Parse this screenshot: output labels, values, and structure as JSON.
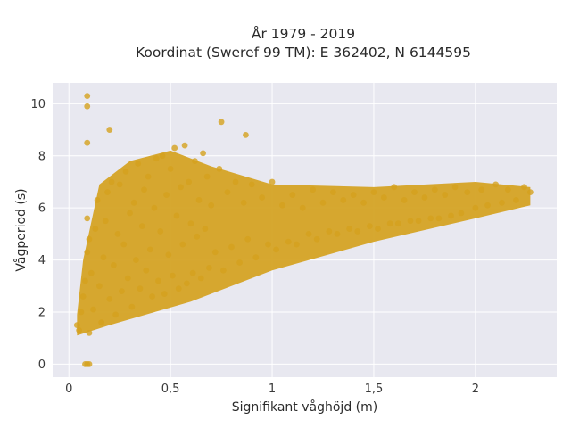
{
  "chart_data": {
    "type": "scatter",
    "title_lines": [
      "År 1979 - 2019",
      "Koordinat (Sweref 99 TM): E 362402, N 6144595"
    ],
    "xlabel": "Signifikant våghöjd (m)",
    "ylabel": "Vågperiod (s)",
    "xlim": [
      -0.08,
      2.4
    ],
    "ylim": [
      -0.5,
      10.8
    ],
    "x_ticks": [
      0,
      0.5,
      1,
      1.5,
      2
    ],
    "x_tick_labels": [
      "0",
      "0,5",
      "1",
      "1,5",
      "2"
    ],
    "y_ticks": [
      0,
      2,
      4,
      6,
      8,
      10
    ],
    "y_tick_labels": [
      "0",
      "2",
      "4",
      "6",
      "8",
      "10"
    ],
    "grid": true,
    "marker_color": "#D4A11E",
    "plot_bg": "#E8E8F0",
    "series": [
      {
        "points": [
          [
            0.04,
            1.5
          ],
          [
            0.05,
            1.3
          ],
          [
            0.06,
            2.0
          ],
          [
            0.07,
            2.6
          ],
          [
            0.08,
            3.2
          ],
          [
            0.09,
            4.3
          ],
          [
            0.09,
            5.6
          ],
          [
            0.1,
            4.8
          ],
          [
            0.1,
            1.2
          ],
          [
            0.11,
            3.5
          ],
          [
            0.12,
            2.1
          ],
          [
            0.13,
            5.2
          ],
          [
            0.14,
            6.3
          ],
          [
            0.15,
            3.0
          ],
          [
            0.16,
            1.6
          ],
          [
            0.17,
            4.1
          ],
          [
            0.18,
            5.5
          ],
          [
            0.19,
            6.6
          ],
          [
            0.2,
            2.5
          ],
          [
            0.21,
            7.0
          ],
          [
            0.22,
            3.8
          ],
          [
            0.23,
            1.9
          ],
          [
            0.24,
            5.0
          ],
          [
            0.25,
            6.9
          ],
          [
            0.26,
            2.8
          ],
          [
            0.27,
            4.6
          ],
          [
            0.28,
            7.4
          ],
          [
            0.29,
            3.3
          ],
          [
            0.3,
            5.8
          ],
          [
            0.31,
            2.2
          ],
          [
            0.32,
            6.2
          ],
          [
            0.33,
            4.0
          ],
          [
            0.34,
            7.7
          ],
          [
            0.35,
            2.9
          ],
          [
            0.36,
            5.3
          ],
          [
            0.37,
            6.7
          ],
          [
            0.38,
            3.6
          ],
          [
            0.39,
            7.2
          ],
          [
            0.4,
            4.4
          ],
          [
            0.41,
            2.6
          ],
          [
            0.42,
            6.0
          ],
          [
            0.43,
            7.9
          ],
          [
            0.44,
            3.2
          ],
          [
            0.45,
            5.1
          ],
          [
            0.46,
            8.0
          ],
          [
            0.47,
            2.7
          ],
          [
            0.48,
            6.5
          ],
          [
            0.49,
            4.2
          ],
          [
            0.5,
            7.5
          ],
          [
            0.51,
            3.4
          ],
          [
            0.52,
            8.3
          ],
          [
            0.53,
            5.7
          ],
          [
            0.54,
            2.9
          ],
          [
            0.55,
            6.8
          ],
          [
            0.56,
            4.6
          ],
          [
            0.57,
            8.4
          ],
          [
            0.58,
            3.1
          ],
          [
            0.59,
            7.0
          ],
          [
            0.6,
            5.4
          ],
          [
            0.61,
            3.5
          ],
          [
            0.62,
            7.8
          ],
          [
            0.63,
            4.9
          ],
          [
            0.64,
            6.3
          ],
          [
            0.65,
            3.3
          ],
          [
            0.66,
            8.1
          ],
          [
            0.67,
            5.2
          ],
          [
            0.68,
            7.2
          ],
          [
            0.69,
            3.7
          ],
          [
            0.7,
            6.1
          ],
          [
            0.72,
            4.3
          ],
          [
            0.74,
            7.5
          ],
          [
            0.76,
            3.6
          ],
          [
            0.78,
            6.6
          ],
          [
            0.8,
            4.5
          ],
          [
            0.82,
            7.0
          ],
          [
            0.84,
            3.9
          ],
          [
            0.86,
            6.2
          ],
          [
            0.88,
            4.8
          ],
          [
            0.9,
            6.9
          ],
          [
            0.92,
            4.1
          ],
          [
            0.95,
            6.4
          ],
          [
            0.98,
            4.6
          ],
          [
            1.0,
            7.0
          ],
          [
            1.02,
            4.4
          ],
          [
            1.05,
            6.1
          ],
          [
            1.08,
            4.7
          ],
          [
            1.1,
            6.5
          ],
          [
            1.12,
            4.6
          ],
          [
            1.15,
            6.0
          ],
          [
            1.18,
            5.0
          ],
          [
            1.2,
            6.7
          ],
          [
            1.22,
            4.8
          ],
          [
            1.25,
            6.2
          ],
          [
            1.28,
            5.1
          ],
          [
            1.3,
            6.6
          ],
          [
            1.32,
            5.0
          ],
          [
            1.35,
            6.3
          ],
          [
            1.38,
            5.2
          ],
          [
            1.4,
            6.5
          ],
          [
            1.42,
            5.1
          ],
          [
            1.45,
            6.2
          ],
          [
            1.48,
            5.3
          ],
          [
            1.5,
            6.6
          ],
          [
            1.52,
            5.2
          ],
          [
            1.55,
            6.4
          ],
          [
            1.58,
            5.4
          ],
          [
            1.6,
            6.8
          ],
          [
            1.62,
            5.4
          ],
          [
            1.65,
            6.3
          ],
          [
            1.68,
            5.5
          ],
          [
            1.7,
            6.6
          ],
          [
            1.72,
            5.5
          ],
          [
            1.75,
            6.4
          ],
          [
            1.78,
            5.6
          ],
          [
            1.8,
            6.7
          ],
          [
            1.82,
            5.6
          ],
          [
            1.85,
            6.5
          ],
          [
            1.88,
            5.7
          ],
          [
            1.9,
            6.8
          ],
          [
            1.93,
            5.8
          ],
          [
            1.96,
            6.6
          ],
          [
            2.0,
            6.0
          ],
          [
            2.03,
            6.7
          ],
          [
            2.06,
            6.1
          ],
          [
            2.1,
            6.9
          ],
          [
            2.13,
            6.2
          ],
          [
            2.16,
            6.7
          ],
          [
            2.2,
            6.3
          ],
          [
            2.24,
            6.8
          ],
          [
            2.27,
            6.6
          ],
          [
            0.08,
            0.0
          ],
          [
            0.09,
            0.0
          ],
          [
            0.1,
            0.0
          ],
          [
            0.09,
            10.3
          ],
          [
            0.09,
            9.9
          ],
          [
            0.09,
            8.5
          ],
          [
            0.2,
            9.0
          ],
          [
            0.75,
            9.3
          ],
          [
            0.87,
            8.8
          ]
        ]
      }
    ]
  }
}
